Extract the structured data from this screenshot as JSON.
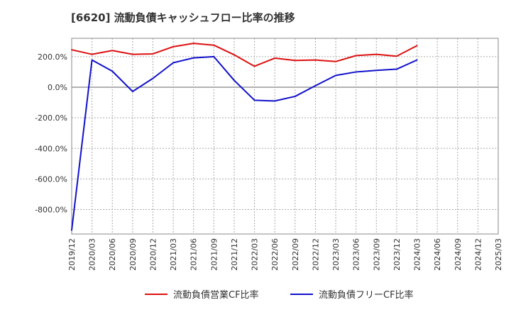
{
  "chart_data": {
    "type": "line",
    "title": "[6620]  流動負債キャッシュフロー比率の推移",
    "xlabel": "",
    "ylabel": "",
    "ylim": [
      -960,
      320
    ],
    "y_ticks": [
      200,
      0,
      -200,
      -400,
      -600,
      -800
    ],
    "y_tick_labels": [
      "200.0%",
      "0.0%",
      "-200.0%",
      "-400.0%",
      "-600.0%",
      "-800.0%"
    ],
    "x": [
      "2019/12",
      "2020/03",
      "2020/06",
      "2020/09",
      "2020/12",
      "2021/03",
      "2021/06",
      "2021/09",
      "2021/12",
      "2022/03",
      "2022/06",
      "2022/09",
      "2022/12",
      "2023/03",
      "2023/06",
      "2023/09",
      "2023/12",
      "2024/03",
      "2024/06",
      "2024/09",
      "2024/12",
      "2025/03"
    ],
    "grid": true,
    "legend_position": "bottom",
    "series": [
      {
        "name": "流動負債営業CF比率",
        "color": "#dd1111",
        "values": [
          245,
          215,
          240,
          215,
          218,
          265,
          287,
          275,
          212,
          137,
          190,
          175,
          178,
          168,
          207,
          215,
          203,
          272,
          null,
          null,
          null,
          null
        ]
      },
      {
        "name": "流動負債フリーCF比率",
        "color": "#1111cc",
        "values": [
          -935,
          178,
          105,
          -28,
          58,
          160,
          192,
          200,
          45,
          -85,
          -90,
          -60,
          10,
          77,
          100,
          110,
          118,
          178,
          null,
          null,
          null,
          null
        ]
      }
    ]
  }
}
